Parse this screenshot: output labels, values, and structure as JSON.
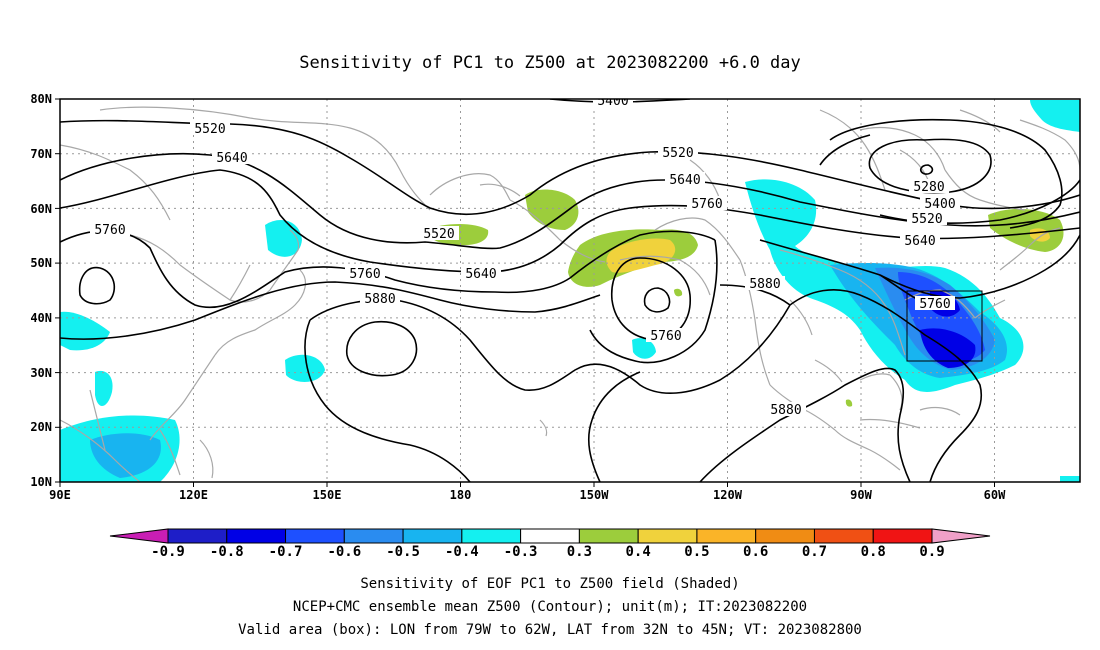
{
  "title": "Sensitivity of PC1 to Z500 at 2023082200 +6.0 day",
  "lat_ticks": [
    "80N",
    "70N",
    "60N",
    "50N",
    "40N",
    "30N",
    "20N",
    "10N"
  ],
  "lon_ticks": [
    "90E",
    "120E",
    "150E",
    "180",
    "150W",
    "120W",
    "90W",
    "60W"
  ],
  "contour_labels": [
    {
      "id": "c5400a",
      "text": "5400"
    },
    {
      "id": "c5520a",
      "text": "5520"
    },
    {
      "id": "c5640a",
      "text": "5640"
    },
    {
      "id": "c5760a",
      "text": "5760"
    },
    {
      "id": "c5520b",
      "text": "5520"
    },
    {
      "id": "c5640b",
      "text": "5640"
    },
    {
      "id": "c5760b",
      "text": "5760"
    },
    {
      "id": "c5880a",
      "text": "5880"
    },
    {
      "id": "c5520c",
      "text": "5520"
    },
    {
      "id": "c5640c",
      "text": "5640"
    },
    {
      "id": "c5760c",
      "text": "5760"
    },
    {
      "id": "c5880b",
      "text": "5880"
    },
    {
      "id": "c5760d",
      "text": "5760"
    },
    {
      "id": "c5880c",
      "text": "5880"
    },
    {
      "id": "c5280",
      "text": "5280"
    },
    {
      "id": "c5400b",
      "text": "5400"
    },
    {
      "id": "c5520d",
      "text": "5520"
    },
    {
      "id": "c5640d",
      "text": "5640"
    },
    {
      "id": "c5760e",
      "text": "5760"
    }
  ],
  "colorbar": {
    "colors": [
      "#1e1ec8",
      "#0000e6",
      "#1e50ff",
      "#2a8cf0",
      "#18b4f0",
      "#14f0f0",
      "#ffffff",
      "#9ccd3c",
      "#f0d23c",
      "#fab428",
      "#f08c14",
      "#f05014",
      "#f01414"
    ],
    "end_colors": {
      "low": "#c81eb4",
      "high": "#f0a0c8"
    },
    "labels": [
      "-0.9",
      "-0.8",
      "-0.7",
      "-0.6",
      "-0.5",
      "-0.4",
      "-0.3",
      "0.3",
      "0.4",
      "0.5",
      "0.6",
      "0.7",
      "0.8",
      "0.9"
    ]
  },
  "caption": [
    "Sensitivity of EOF PC1 to Z500 field (Shaded)",
    "NCEP+CMC ensemble mean Z500 (Contour); unit(m); IT:2023082200",
    "Valid area (box): LON from 79W to 62W, LAT from 32N to 45N; VT: 2023082800"
  ]
}
